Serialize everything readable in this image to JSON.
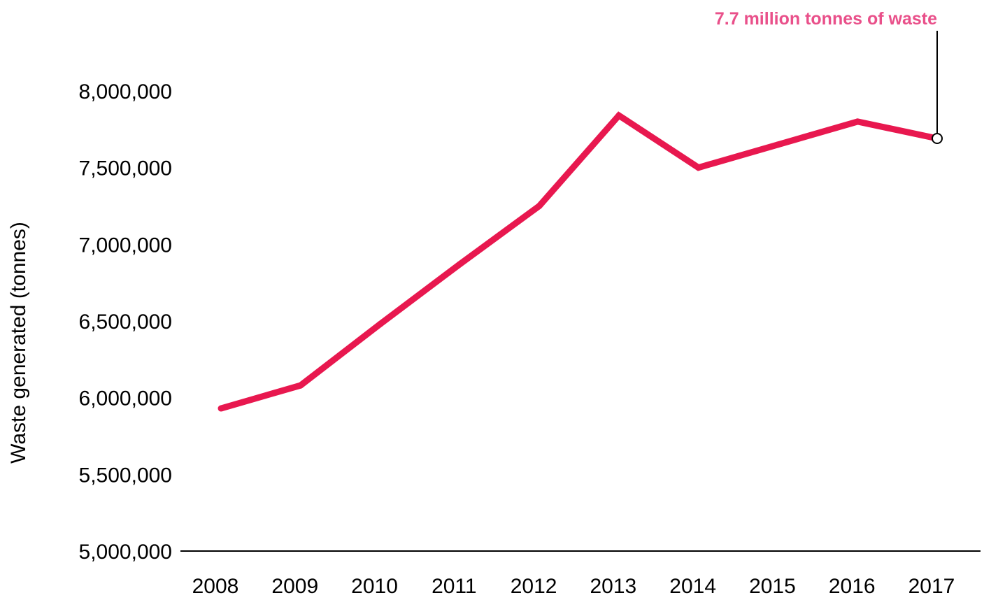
{
  "chart_data": {
    "type": "line",
    "title": "",
    "xlabel": "",
    "ylabel": "Waste generated (tonnes)",
    "ylim": [
      5000000,
      8000000
    ],
    "y_ticks": [
      5000000,
      5500000,
      6000000,
      6500000,
      7000000,
      7500000,
      8000000
    ],
    "y_tick_labels": [
      "5,000,000",
      "5,500,000",
      "6,000,000",
      "6,500,000",
      "7,000,000",
      "7,500,000",
      "8,000,000"
    ],
    "x": [
      "2008",
      "2009",
      "2010",
      "2011",
      "2012",
      "2013",
      "2014",
      "2015",
      "2016",
      "2017"
    ],
    "series": [
      {
        "values": [
          5930000,
          6080000,
          6480000,
          6870000,
          7250000,
          7840000,
          7500000,
          7650000,
          7800000,
          7690000
        ]
      }
    ],
    "grid": false,
    "line_color": "#e8184f",
    "annotation": {
      "text": "7.7 million tonnes of waste",
      "x": "2017",
      "y": 7690000,
      "color": "#e9508a"
    }
  }
}
